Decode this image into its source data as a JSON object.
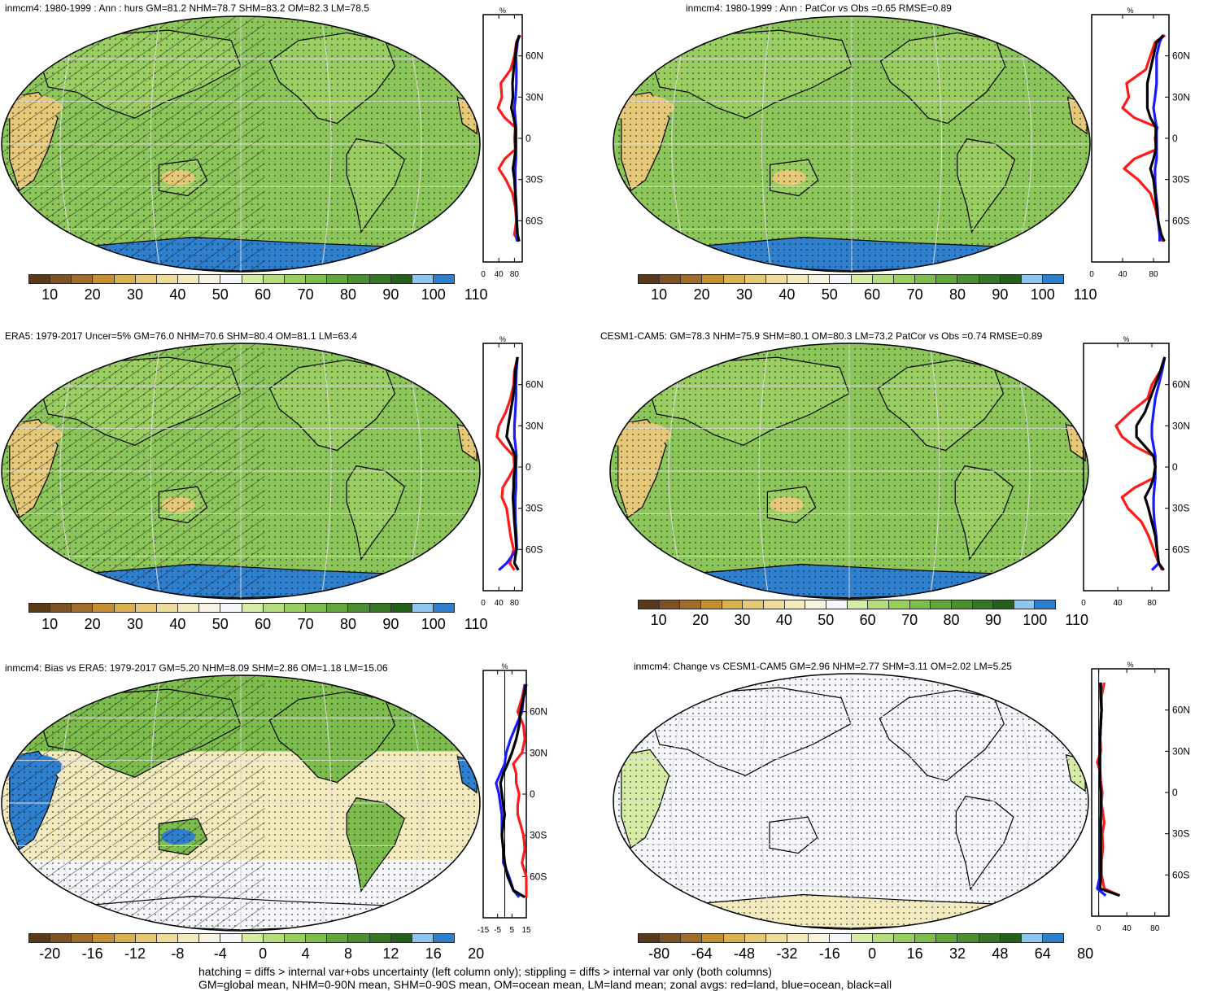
{
  "palettes": {
    "abs": [
      "#5a3a1c",
      "#7d5225",
      "#a06c2c",
      "#c48f33",
      "#d8b050",
      "#e6c879",
      "#eddc9c",
      "#f3ebbe",
      "#f7f4e2",
      "#f5f7fb",
      "#d7eca7",
      "#b6dc7d",
      "#98cd5f",
      "#7dbd4d",
      "#62a63c",
      "#4b8f30",
      "#357726",
      "#24601c",
      "#8ec7ee",
      "#2f7fcf"
    ],
    "bias": [
      "#5a3a1c",
      "#7d5225",
      "#a06c2c",
      "#c48f33",
      "#d8b050",
      "#e6c879",
      "#eddc9c",
      "#f3ebbe",
      "#f7f4e2",
      "#f5f7fb",
      "#d7eca7",
      "#b6dc7d",
      "#98cd5f",
      "#7dbd4d",
      "#62a63c",
      "#4b8f30",
      "#357726",
      "#24601c",
      "#8ec7ee",
      "#2f7fcf"
    ],
    "change": [
      "#5a3a1c",
      "#7d5225",
      "#a06c2c",
      "#c48f33",
      "#d8b050",
      "#e6c879",
      "#eddc9c",
      "#f3ebbe",
      "#f7f4e2",
      "#f5f7fb",
      "#d7eca7",
      "#b6dc7d",
      "#98cd5f",
      "#7dbd4d",
      "#62a63c",
      "#4b8f30",
      "#357726",
      "#24601c",
      "#8ec7ee",
      "#2f7fcf"
    ]
  },
  "zonal_colors": {
    "land": "#ff1a1a",
    "ocean": "#1a1aff",
    "all": "#000000"
  },
  "panels": [
    {
      "title": "inmcm4: 1980-1999 : Ann : hurs GM=81.2 NHM=78.7 SHM=83.2 OM=82.3 LM=78.5",
      "colorbar_labels": [
        "10",
        "20",
        "30",
        "40",
        "50",
        "60",
        "70",
        "80",
        "90",
        "100",
        "110"
      ],
      "palette": "abs"
    },
    {
      "title": "inmcm4: 1980-1999 : Ann : PatCor vs Obs =0.65 RMSE=0.89",
      "colorbar_labels": [
        "10",
        "20",
        "30",
        "40",
        "50",
        "60",
        "70",
        "80",
        "90",
        "100",
        "110"
      ],
      "palette": "abs"
    },
    {
      "title": "ERA5: 1979-2017 Uncer=5% GM=76.0 NHM=70.6 SHM=80.4 OM=81.1 LM=63.4",
      "colorbar_labels": [
        "10",
        "20",
        "30",
        "40",
        "50",
        "60",
        "70",
        "80",
        "90",
        "100",
        "110"
      ],
      "palette": "abs"
    },
    {
      "title": "CESM1-CAM5: GM=78.3 NHM=75.9 SHM=80.1 OM=80.3 LM=73.2 PatCor vs Obs =0.74 RMSE=0.89",
      "colorbar_labels": [
        "10",
        "20",
        "30",
        "40",
        "50",
        "60",
        "70",
        "80",
        "90",
        "100",
        "110"
      ],
      "palette": "abs"
    },
    {
      "title": "inmcm4: Bias vs ERA5: 1979-2017 GM=5.20 NHM=8.09 SHM=2.86 OM=1.18 LM=15.06",
      "colorbar_labels": [
        "-20",
        "-16",
        "-12",
        "-8",
        "-4",
        "0",
        "4",
        "8",
        "12",
        "16",
        "20"
      ],
      "palette": "bias"
    },
    {
      "title": "inmcm4: Change vs CESM1-CAM5 GM=2.96 NHM=2.77 SHM=3.11 OM=2.02 LM=5.25",
      "colorbar_labels": [
        "-80",
        "-64",
        "-48",
        "-32",
        "-16",
        "0",
        "16",
        "32",
        "48",
        "64",
        "80"
      ],
      "palette": "change"
    }
  ],
  "chart_data": [
    {
      "type": "line",
      "unit": "%",
      "x_ticks": [
        "0",
        "40",
        "80"
      ],
      "xlim": [
        0,
        100
      ],
      "y_ticks": [
        "60N",
        "30N",
        "0",
        "30S",
        "60S"
      ],
      "ylim": [
        -90,
        90
      ],
      "series": [
        {
          "name": "land",
          "lat": [
            75,
            70,
            60,
            50,
            40,
            30,
            22,
            15,
            8,
            0,
            -8,
            -15,
            -22,
            -30,
            -40,
            -50,
            -60,
            -70,
            -75
          ],
          "values": [
            95,
            85,
            80,
            70,
            45,
            48,
            38,
            55,
            82,
            80,
            82,
            55,
            40,
            58,
            75,
            82,
            85,
            80,
            90
          ]
        },
        {
          "name": "ocean",
          "lat": [
            75,
            70,
            60,
            50,
            40,
            30,
            22,
            15,
            8,
            0,
            -8,
            -15,
            -22,
            -30,
            -40,
            -50,
            -60,
            -70,
            -75
          ],
          "values": [
            92,
            88,
            84,
            85,
            85,
            83,
            80,
            82,
            84,
            84,
            84,
            84,
            82,
            82,
            83,
            85,
            86,
            87,
            86
          ]
        },
        {
          "name": "all",
          "lat": [
            75,
            70,
            60,
            50,
            40,
            30,
            22,
            15,
            8,
            0,
            -8,
            -15,
            -22,
            -30,
            -40,
            -50,
            -60,
            -70,
            -75
          ],
          "values": [
            93,
            86,
            82,
            78,
            75,
            76,
            72,
            78,
            83,
            83,
            83,
            80,
            76,
            80,
            82,
            84,
            86,
            88,
            92
          ]
        }
      ]
    },
    {
      "type": "line",
      "unit": "%",
      "x_ticks": [
        "0",
        "40",
        "80"
      ],
      "xlim": [
        0,
        100
      ],
      "y_ticks": [
        "60N",
        "30N",
        "0",
        "30S",
        "60S"
      ],
      "ylim": [
        -90,
        90
      ],
      "series": [
        {
          "name": "land",
          "lat": [
            75,
            70,
            60,
            50,
            40,
            30,
            22,
            15,
            8,
            0,
            -8,
            -15,
            -22,
            -30,
            -40,
            -50,
            -60,
            -70,
            -75
          ],
          "values": [
            95,
            82,
            76,
            70,
            45,
            48,
            40,
            55,
            85,
            82,
            84,
            55,
            42,
            60,
            76,
            82,
            86,
            88,
            92
          ]
        },
        {
          "name": "ocean",
          "lat": [
            75,
            70,
            60,
            50,
            40,
            30,
            22,
            15,
            8,
            0,
            -8,
            -15,
            -22,
            -30,
            -40,
            -50,
            -60,
            -70,
            -75
          ],
          "values": [
            92,
            88,
            84,
            84,
            84,
            82,
            80,
            82,
            84,
            84,
            84,
            84,
            82,
            82,
            83,
            85,
            86,
            88,
            88
          ]
        },
        {
          "name": "all",
          "lat": [
            75,
            70,
            60,
            50,
            40,
            30,
            22,
            15,
            8,
            0,
            -8,
            -15,
            -22,
            -30,
            -40,
            -50,
            -60,
            -70,
            -75
          ],
          "values": [
            93,
            84,
            80,
            76,
            72,
            72,
            72,
            76,
            83,
            83,
            83,
            80,
            76,
            80,
            82,
            84,
            86,
            90,
            94
          ]
        }
      ]
    },
    {
      "type": "line",
      "unit": "%",
      "x_ticks": [
        "0",
        "40",
        "80"
      ],
      "xlim": [
        0,
        100
      ],
      "y_ticks": [
        "60N",
        "30N",
        "0",
        "30S",
        "60S"
      ],
      "ylim": [
        -90,
        90
      ],
      "series": [
        {
          "name": "land",
          "lat": [
            80,
            70,
            60,
            50,
            40,
            30,
            22,
            15,
            8,
            0,
            -8,
            -15,
            -22,
            -30,
            -40,
            -50,
            -60,
            -70,
            -75
          ],
          "values": [
            88,
            80,
            78,
            70,
            58,
            40,
            35,
            55,
            78,
            80,
            65,
            50,
            48,
            60,
            65,
            70,
            78,
            68,
            80
          ]
        },
        {
          "name": "ocean",
          "lat": [
            80,
            70,
            60,
            50,
            40,
            30,
            22,
            15,
            8,
            0,
            -8,
            -15,
            -22,
            -30,
            -40,
            -50,
            -60,
            -70,
            -75
          ],
          "values": [
            88,
            85,
            84,
            84,
            82,
            80,
            80,
            83,
            85,
            84,
            84,
            84,
            82,
            82,
            83,
            85,
            86,
            60,
            40
          ]
        },
        {
          "name": "all",
          "lat": [
            80,
            70,
            60,
            50,
            40,
            30,
            22,
            15,
            8,
            0,
            -8,
            -15,
            -22,
            -30,
            -40,
            -50,
            -60,
            -70,
            -75
          ],
          "values": [
            88,
            82,
            80,
            76,
            70,
            64,
            60,
            72,
            82,
            82,
            78,
            78,
            76,
            78,
            80,
            83,
            85,
            80,
            90
          ]
        }
      ]
    },
    {
      "type": "line",
      "unit": "%",
      "x_ticks": [
        "0",
        "40",
        "80"
      ],
      "xlim": [
        0,
        100
      ],
      "y_ticks": [
        "60N",
        "30N",
        "0",
        "30S",
        "60S"
      ],
      "ylim": [
        -90,
        90
      ],
      "series": [
        {
          "name": "land",
          "lat": [
            80,
            70,
            60,
            50,
            40,
            30,
            22,
            15,
            8,
            0,
            -8,
            -15,
            -22,
            -30,
            -40,
            -50,
            -60,
            -70,
            -75
          ],
          "values": [
            95,
            90,
            80,
            75,
            55,
            38,
            45,
            60,
            82,
            84,
            82,
            60,
            45,
            52,
            68,
            76,
            82,
            88,
            92
          ]
        },
        {
          "name": "ocean",
          "lat": [
            80,
            70,
            60,
            50,
            40,
            30,
            22,
            15,
            8,
            0,
            -8,
            -15,
            -22,
            -30,
            -40,
            -50,
            -60,
            -70,
            -75
          ],
          "values": [
            95,
            92,
            88,
            84,
            82,
            80,
            80,
            82,
            84,
            84,
            84,
            83,
            82,
            82,
            83,
            85,
            86,
            88,
            80
          ]
        },
        {
          "name": "all",
          "lat": [
            80,
            70,
            60,
            50,
            40,
            30,
            22,
            15,
            8,
            0,
            -8,
            -15,
            -22,
            -30,
            -40,
            -50,
            -60,
            -70,
            -75
          ],
          "values": [
            95,
            90,
            84,
            78,
            72,
            62,
            62,
            72,
            82,
            84,
            82,
            78,
            72,
            76,
            80,
            84,
            86,
            88,
            94
          ]
        }
      ]
    },
    {
      "type": "line",
      "unit": "%",
      "x_ticks": [
        "-15",
        "-5",
        "5",
        "15"
      ],
      "xlim": [
        -15,
        15
      ],
      "y_ticks": [
        "60N",
        "30N",
        "0",
        "30S",
        "60S"
      ],
      "ylim": [
        -90,
        90
      ],
      "series": [
        {
          "name": "land",
          "lat": [
            80,
            70,
            60,
            50,
            40,
            30,
            22,
            15,
            8,
            0,
            -8,
            -15,
            -22,
            -30,
            -40,
            -50,
            -60,
            -70,
            -75
          ],
          "values": [
            14,
            12,
            9,
            13,
            14,
            12,
            6,
            8,
            8,
            10,
            9,
            9,
            11,
            13,
            14,
            12,
            15,
            15,
            15
          ]
        },
        {
          "name": "ocean",
          "lat": [
            80,
            70,
            60,
            50,
            40,
            30,
            22,
            15,
            8,
            0,
            -8,
            -15,
            -22,
            -30,
            -40,
            -50,
            -60,
            -70,
            -75
          ],
          "values": [
            14,
            13,
            12,
            8,
            4,
            1,
            0,
            -3,
            -6,
            -4,
            -3,
            -2,
            -2,
            -2,
            -1,
            -1,
            3,
            6,
            10
          ]
        },
        {
          "name": "all",
          "lat": [
            80,
            70,
            60,
            50,
            40,
            30,
            22,
            15,
            8,
            0,
            -8,
            -15,
            -22,
            -30,
            -40,
            -50,
            -60,
            -70,
            -75
          ],
          "values": [
            15,
            13,
            11,
            10,
            8,
            5,
            2,
            -1,
            -3,
            -2,
            -1,
            0,
            -1,
            -2,
            -1,
            0,
            2,
            6,
            14
          ]
        }
      ]
    },
    {
      "type": "line",
      "unit": "%",
      "x_ticks": [
        "0",
        "40",
        "80"
      ],
      "xlim": [
        -10,
        100
      ],
      "y_ticks": [
        "60N",
        "30N",
        "0",
        "30S",
        "60S"
      ],
      "ylim": [
        -90,
        90
      ],
      "series": [
        {
          "name": "land",
          "lat": [
            80,
            70,
            60,
            50,
            40,
            30,
            22,
            15,
            8,
            0,
            -8,
            -15,
            -22,
            -30,
            -40,
            -50,
            -60,
            -70,
            -75
          ],
          "values": [
            8,
            4,
            4,
            3,
            2,
            3,
            -2,
            2,
            3,
            5,
            4,
            6,
            8,
            5,
            6,
            4,
            4,
            8,
            30
          ]
        },
        {
          "name": "ocean",
          "lat": [
            80,
            70,
            60,
            50,
            40,
            30,
            22,
            15,
            8,
            0,
            -8,
            -15,
            -22,
            -30,
            -40,
            -50,
            -60,
            -70,
            -75
          ],
          "values": [
            2,
            3,
            4,
            3,
            2,
            2,
            2,
            2,
            2,
            3,
            3,
            3,
            2,
            2,
            2,
            2,
            2,
            -2,
            10
          ]
        },
        {
          "name": "all",
          "lat": [
            80,
            70,
            60,
            50,
            40,
            30,
            22,
            15,
            8,
            0,
            -8,
            -15,
            -22,
            -30,
            -40,
            -50,
            -60,
            -70,
            -75
          ],
          "values": [
            3,
            3,
            4,
            3,
            2,
            2,
            1,
            2,
            2,
            3,
            3,
            3,
            3,
            3,
            3,
            3,
            3,
            2,
            30
          ]
        }
      ]
    }
  ],
  "footer": {
    "line1": "hatching = diffs > internal var+obs uncertainty (left column only); stippling = diffs > internal var only (both columns)",
    "line2": "GM=global mean, NHM=0-90N mean, SHM=0-90S mean, OM=ocean mean, LM=land mean; zonal avgs: red=land, blue=ocean, black=all"
  }
}
